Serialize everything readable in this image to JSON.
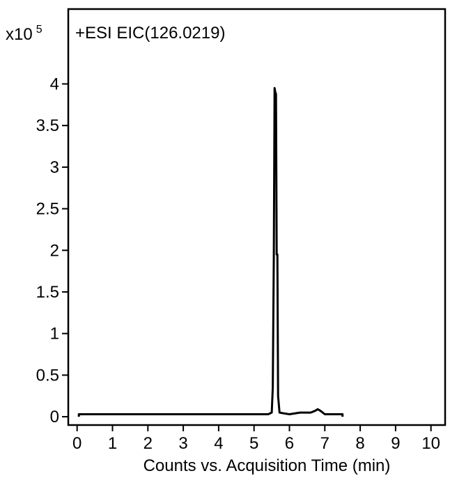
{
  "chart_data": {
    "type": "line",
    "title": "+ESI EIC(126.0219)",
    "xlabel": "Counts vs. Acquisition Time (min)",
    "ylabel": "",
    "scale_label": {
      "base": "x10",
      "exponent": "5"
    },
    "xlim": [
      -0.25,
      10.4
    ],
    "ylim": [
      -0.1,
      4.9
    ],
    "x_ticks": [
      0,
      1,
      2,
      3,
      4,
      5,
      6,
      7,
      8,
      9,
      10
    ],
    "x_tick_labels": [
      "0",
      "1",
      "2",
      "3",
      "4",
      "5",
      "6",
      "7",
      "8",
      "9",
      "10"
    ],
    "y_ticks": [
      0,
      0.5,
      1,
      1.5,
      2,
      2.5,
      3,
      3.5,
      4
    ],
    "y_tick_labels": [
      "0",
      "0.5",
      "1",
      "1.5",
      "2",
      "2.5",
      "3",
      "3.5",
      "4"
    ],
    "grid": false,
    "series": [
      {
        "color": "#000000",
        "x": [
          0.05,
          0.05,
          5.4,
          5.5,
          5.53,
          5.56,
          5.58,
          5.6,
          5.62,
          5.64,
          5.66,
          5.68,
          5.72,
          5.85,
          6.0,
          6.3,
          6.6,
          6.72,
          6.8,
          6.88,
          7.0,
          7.2,
          7.5,
          7.5
        ],
        "y": [
          0,
          0.03,
          0.03,
          0.05,
          0.35,
          1.95,
          3.95,
          3.9,
          3.88,
          1.95,
          1.95,
          0.25,
          0.05,
          0.04,
          0.03,
          0.05,
          0.05,
          0.07,
          0.09,
          0.07,
          0.03,
          0.03,
          0.03,
          0
        ]
      }
    ]
  }
}
